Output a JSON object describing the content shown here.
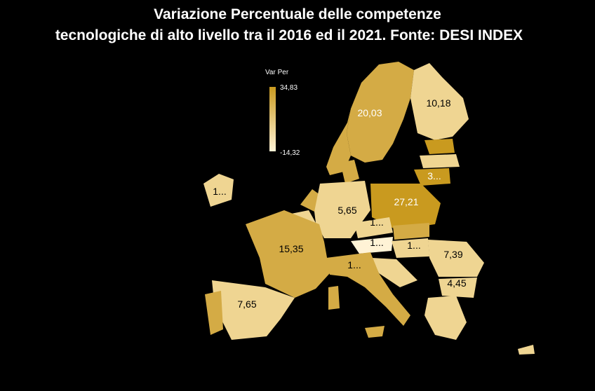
{
  "title": {
    "line1": "Variazione Percentuale delle competenze",
    "line2": "tecnologiche di alto livello tra il 2016 ed il 2021. Fonte: DESI INDEX"
  },
  "legend": {
    "title": "Var Per",
    "max": "34,83",
    "min": "-14,32",
    "color_max": "#c99a1f",
    "color_min": "#fff3d6"
  },
  "labels": {
    "sweden": "20,03",
    "finland": "10,18",
    "lithuania": "3...",
    "ireland": "1...",
    "germany": "5,65",
    "poland": "27,21",
    "czechia": "1...",
    "austria": "1...",
    "hungary": "1...",
    "france": "15,35",
    "romania": "7,39",
    "italy": "1...",
    "bulgaria": "4,45",
    "spain": "7,65"
  }
}
